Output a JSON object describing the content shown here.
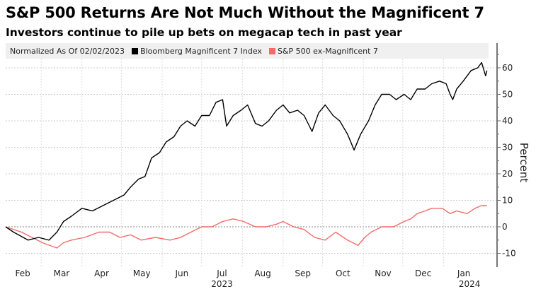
{
  "chart_data": {
    "type": "line",
    "title": "S&P 500 Returns Are Not Much Without the Magnificent 7",
    "subtitle": "Investors continue to pile up bets on megacap tech in past year",
    "legend_note": "Normalized As Of 02/02/2023",
    "legend_placement": "top",
    "ylabel": "Percent",
    "ylim": [
      -13,
      70
    ],
    "yticks": [
      -10,
      0,
      10,
      20,
      30,
      40,
      50,
      60
    ],
    "x_unit": "days since 2023-02-02",
    "xlim": [
      0,
      372
    ],
    "months": [
      {
        "label": "Feb",
        "start": -1,
        "year": ""
      },
      {
        "label": "Mar",
        "start": 27,
        "year": ""
      },
      {
        "label": "Apr",
        "start": 58,
        "year": ""
      },
      {
        "label": "May",
        "start": 88,
        "year": ""
      },
      {
        "label": "Jun",
        "start": 119,
        "year": ""
      },
      {
        "label": "Jul",
        "start": 149,
        "year": "2023"
      },
      {
        "label": "Aug",
        "start": 180,
        "year": ""
      },
      {
        "label": "Sep",
        "start": 211,
        "year": ""
      },
      {
        "label": "Oct",
        "start": 241,
        "year": ""
      },
      {
        "label": "Nov",
        "start": 272,
        "year": ""
      },
      {
        "label": "Dec",
        "start": 302,
        "year": ""
      },
      {
        "label": "Jan",
        "start": 333,
        "year": "2024"
      }
    ],
    "grid": true,
    "series": [
      {
        "name": "Bloomberg Magnificent 7 Index",
        "color": "#000000",
        "x": [
          0,
          6,
          17,
          25,
          33,
          39,
          44,
          50,
          58,
          66,
          74,
          82,
          90,
          95,
          101,
          106,
          111,
          117,
          122,
          128,
          133,
          138,
          144,
          149,
          155,
          160,
          165,
          168,
          173,
          179,
          184,
          190,
          195,
          200,
          206,
          211,
          216,
          222,
          227,
          233,
          238,
          243,
          249,
          254,
          260,
          265,
          270,
          276,
          281,
          286,
          292,
          297,
          303,
          308,
          313,
          319,
          324,
          330,
          335,
          338,
          340,
          343,
          348,
          354,
          359,
          362,
          365,
          366
        ],
        "values": [
          0,
          -2,
          -5,
          -4,
          -5,
          -2,
          2,
          4,
          7,
          6,
          8,
          10,
          12,
          15,
          18,
          19,
          26,
          28,
          32,
          34,
          38,
          40,
          38,
          42,
          42,
          47,
          48,
          38,
          42,
          44,
          46,
          39,
          38,
          40,
          44,
          46,
          43,
          44,
          42,
          36,
          43,
          46,
          42,
          40,
          35,
          29,
          35,
          40,
          46,
          50,
          50,
          48,
          50,
          48,
          52,
          52,
          54,
          55,
          54,
          50,
          48,
          52,
          55,
          59,
          60,
          62,
          57,
          59
        ]
      },
      {
        "name": "S&P 500 ex-Magnificent 7",
        "color": "#f26a6a",
        "x": [
          0,
          12,
          28,
          39,
          44,
          50,
          60,
          71,
          79,
          87,
          95,
          103,
          114,
          125,
          133,
          141,
          149,
          157,
          165,
          173,
          181,
          190,
          198,
          206,
          211,
          219,
          227,
          235,
          243,
          251,
          260,
          268,
          273,
          278,
          286,
          295,
          303,
          308,
          313,
          319,
          324,
          332,
          338,
          343,
          351,
          357,
          362,
          366
        ],
        "values": [
          0,
          -2,
          -6,
          -8,
          -6,
          -5,
          -4,
          -2,
          -2,
          -4,
          -3,
          -5,
          -4,
          -5,
          -4,
          -2,
          0,
          0,
          2,
          3,
          2,
          0,
          0,
          1,
          2,
          0,
          -1,
          -4,
          -5,
          -2,
          -5,
          -7,
          -4,
          -2,
          0,
          0,
          2,
          3,
          5,
          6,
          7,
          7,
          5,
          6,
          5,
          7,
          8,
          8
        ]
      }
    ]
  }
}
